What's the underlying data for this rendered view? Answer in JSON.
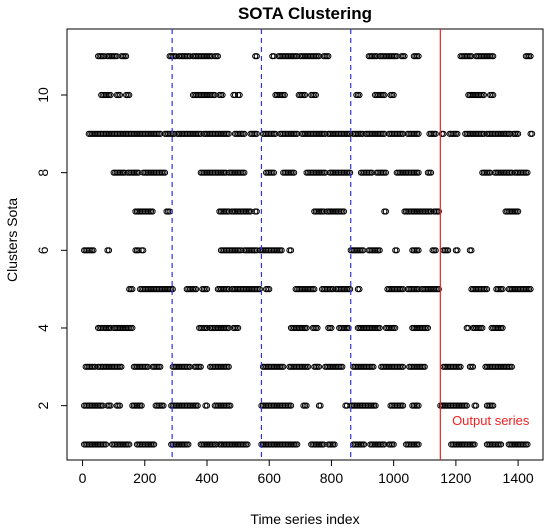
{
  "chart_data": {
    "type": "scatter",
    "title": "SOTA Clustering",
    "xlabel": "Time series index",
    "ylabel": "Clusters  Sota",
    "xlim": [
      -50,
      1480
    ],
    "ylim": [
      0.6,
      11.7
    ],
    "xticks": [
      0,
      200,
      400,
      600,
      800,
      1000,
      1200,
      1400
    ],
    "yticks": [
      2,
      4,
      6,
      8,
      10
    ],
    "vlines": [
      {
        "x": 288,
        "style": "dashed",
        "color": "#3333ee"
      },
      {
        "x": 575,
        "style": "dashed",
        "color": "#3333ee"
      },
      {
        "x": 862,
        "style": "dashed",
        "color": "#3333ee"
      },
      {
        "x": 1150,
        "style": "solid",
        "color": "#ee2222"
      }
    ],
    "annotations": [
      {
        "text": "Output series",
        "x": 1312,
        "y": 1.5,
        "color": "#ee2222"
      }
    ],
    "grid": false,
    "legend": "none",
    "clusters": [
      {
        "y": 1,
        "ranges": [
          [
            5,
            75
          ],
          [
            95,
            130
          ],
          [
            135,
            150
          ],
          [
            175,
            230
          ],
          [
            285,
            320
          ],
          [
            325,
            340
          ],
          [
            380,
            430
          ],
          [
            440,
            480
          ],
          [
            485,
            530
          ],
          [
            575,
            645
          ],
          [
            650,
            690
          ],
          [
            735,
            775
          ],
          [
            790,
            810
          ],
          [
            870,
            905
          ],
          [
            925,
            970
          ],
          [
            985,
            1000
          ],
          [
            1040,
            1080
          ],
          [
            1185,
            1260
          ],
          [
            1300,
            1345
          ],
          [
            1370,
            1430
          ]
        ]
      },
      {
        "y": 2,
        "ranges": [
          [
            5,
            65
          ],
          [
            80,
            90
          ],
          [
            110,
            120
          ],
          [
            160,
            190
          ],
          [
            235,
            260
          ],
          [
            285,
            370
          ],
          [
            395,
            400
          ],
          [
            425,
            475
          ],
          [
            575,
            670
          ],
          [
            710,
            720
          ],
          [
            760,
            765
          ],
          [
            845,
            850
          ],
          [
            862,
            945
          ],
          [
            990,
            1030
          ],
          [
            1060,
            1080
          ],
          [
            1150,
            1235
          ],
          [
            1260,
            1265
          ],
          [
            1300,
            1320
          ]
        ]
      },
      {
        "y": 3,
        "ranges": [
          [
            10,
            40
          ],
          [
            50,
            125
          ],
          [
            165,
            210
          ],
          [
            225,
            250
          ],
          [
            290,
            345
          ],
          [
            360,
            380
          ],
          [
            410,
            470
          ],
          [
            580,
            645
          ],
          [
            665,
            725
          ],
          [
            745,
            760
          ],
          [
            780,
            835
          ],
          [
            870,
            935
          ],
          [
            960,
            1030
          ],
          [
            1050,
            1100
          ],
          [
            1160,
            1215
          ],
          [
            1245,
            1255
          ],
          [
            1295,
            1380
          ]
        ]
      },
      {
        "y": 4,
        "ranges": [
          [
            50,
            90
          ],
          [
            100,
            160
          ],
          [
            375,
            400
          ],
          [
            410,
            470
          ],
          [
            485,
            500
          ],
          [
            670,
            720
          ],
          [
            740,
            755
          ],
          [
            790,
            800
          ],
          [
            825,
            855
          ],
          [
            885,
            955
          ],
          [
            975,
            1005
          ],
          [
            1060,
            1110
          ],
          [
            1235,
            1240
          ],
          [
            1255,
            1285
          ],
          [
            1315,
            1350
          ]
        ]
      },
      {
        "y": 5,
        "ranges": [
          [
            150,
            160
          ],
          [
            185,
            200
          ],
          [
            205,
            290
          ],
          [
            335,
            365
          ],
          [
            385,
            400
          ],
          [
            435,
            470
          ],
          [
            480,
            525
          ],
          [
            530,
            570
          ],
          [
            590,
            600
          ],
          [
            685,
            745
          ],
          [
            770,
            805
          ],
          [
            815,
            860
          ],
          [
            885,
            890
          ],
          [
            980,
            1030
          ],
          [
            1045,
            1080
          ],
          [
            1090,
            1145
          ],
          [
            1250,
            1300
          ],
          [
            1330,
            1350
          ],
          [
            1370,
            1440
          ]
        ]
      },
      {
        "y": 6,
        "ranges": [
          [
            5,
            35
          ],
          [
            80,
            85
          ],
          [
            170,
            180
          ],
          [
            190,
            195
          ],
          [
            445,
            510
          ],
          [
            520,
            560
          ],
          [
            570,
            640
          ],
          [
            665,
            670
          ],
          [
            862,
            905
          ],
          [
            920,
            955
          ],
          [
            1005,
            1010
          ],
          [
            1060,
            1080
          ],
          [
            1125,
            1135
          ],
          [
            1160,
            1175
          ],
          [
            1200,
            1205
          ],
          [
            1245,
            1250
          ]
        ]
      },
      {
        "y": 7,
        "ranges": [
          [
            170,
            185
          ],
          [
            190,
            225
          ],
          [
            270,
            280
          ],
          [
            440,
            470
          ],
          [
            480,
            540
          ],
          [
            555,
            560
          ],
          [
            745,
            775
          ],
          [
            785,
            830
          ],
          [
            835,
            840
          ],
          [
            970,
            975
          ],
          [
            1035,
            1060
          ],
          [
            1065,
            1120
          ],
          [
            1130,
            1145
          ],
          [
            1360,
            1400
          ]
        ]
      },
      {
        "y": 8,
        "ranges": [
          [
            100,
            135
          ],
          [
            145,
            180
          ],
          [
            195,
            240
          ],
          [
            245,
            265
          ],
          [
            380,
            410
          ],
          [
            415,
            460
          ],
          [
            470,
            520
          ],
          [
            590,
            615
          ],
          [
            645,
            680
          ],
          [
            720,
            780
          ],
          [
            795,
            860
          ],
          [
            895,
            930
          ],
          [
            945,
            975
          ],
          [
            1010,
            1080
          ],
          [
            1110,
            1120
          ],
          [
            1285,
            1310
          ],
          [
            1325,
            1380
          ],
          [
            1390,
            1430
          ]
        ]
      },
      {
        "y": 9,
        "ranges": [
          [
            20,
            100
          ],
          [
            105,
            160
          ],
          [
            165,
            250
          ],
          [
            265,
            295
          ],
          [
            305,
            380
          ],
          [
            390,
            470
          ],
          [
            490,
            520
          ],
          [
            540,
            560
          ],
          [
            580,
            620
          ],
          [
            635,
            690
          ],
          [
            705,
            780
          ],
          [
            790,
            860
          ],
          [
            870,
            900
          ],
          [
            910,
            970
          ],
          [
            985,
            1030
          ],
          [
            1045,
            1080
          ],
          [
            1115,
            1135
          ],
          [
            1155,
            1160
          ],
          [
            1180,
            1205
          ],
          [
            1230,
            1290
          ],
          [
            1300,
            1345
          ],
          [
            1350,
            1375
          ],
          [
            1385,
            1400
          ],
          [
            1440,
            1445
          ]
        ]
      },
      {
        "y": 10,
        "ranges": [
          [
            60,
            80
          ],
          [
            85,
            90
          ],
          [
            110,
            120
          ],
          [
            140,
            150
          ],
          [
            355,
            380
          ],
          [
            385,
            425
          ],
          [
            440,
            450
          ],
          [
            485,
            490
          ],
          [
            500,
            505
          ],
          [
            620,
            650
          ],
          [
            695,
            715
          ],
          [
            735,
            750
          ],
          [
            880,
            890
          ],
          [
            940,
            970
          ],
          [
            990,
            1000
          ],
          [
            1240,
            1290
          ],
          [
            1310,
            1320
          ]
        ]
      },
      {
        "y": 11,
        "ranges": [
          [
            50,
            70
          ],
          [
            80,
            110
          ],
          [
            125,
            140
          ],
          [
            280,
            300
          ],
          [
            310,
            345
          ],
          [
            355,
            415
          ],
          [
            425,
            435
          ],
          [
            555,
            560
          ],
          [
            610,
            615
          ],
          [
            630,
            690
          ],
          [
            700,
            760
          ],
          [
            775,
            790
          ],
          [
            920,
            945
          ],
          [
            955,
            1010
          ],
          [
            1025,
            1035
          ],
          [
            1065,
            1080
          ],
          [
            1215,
            1250
          ],
          [
            1265,
            1300
          ],
          [
            1305,
            1320
          ],
          [
            1425,
            1440
          ]
        ]
      }
    ]
  }
}
